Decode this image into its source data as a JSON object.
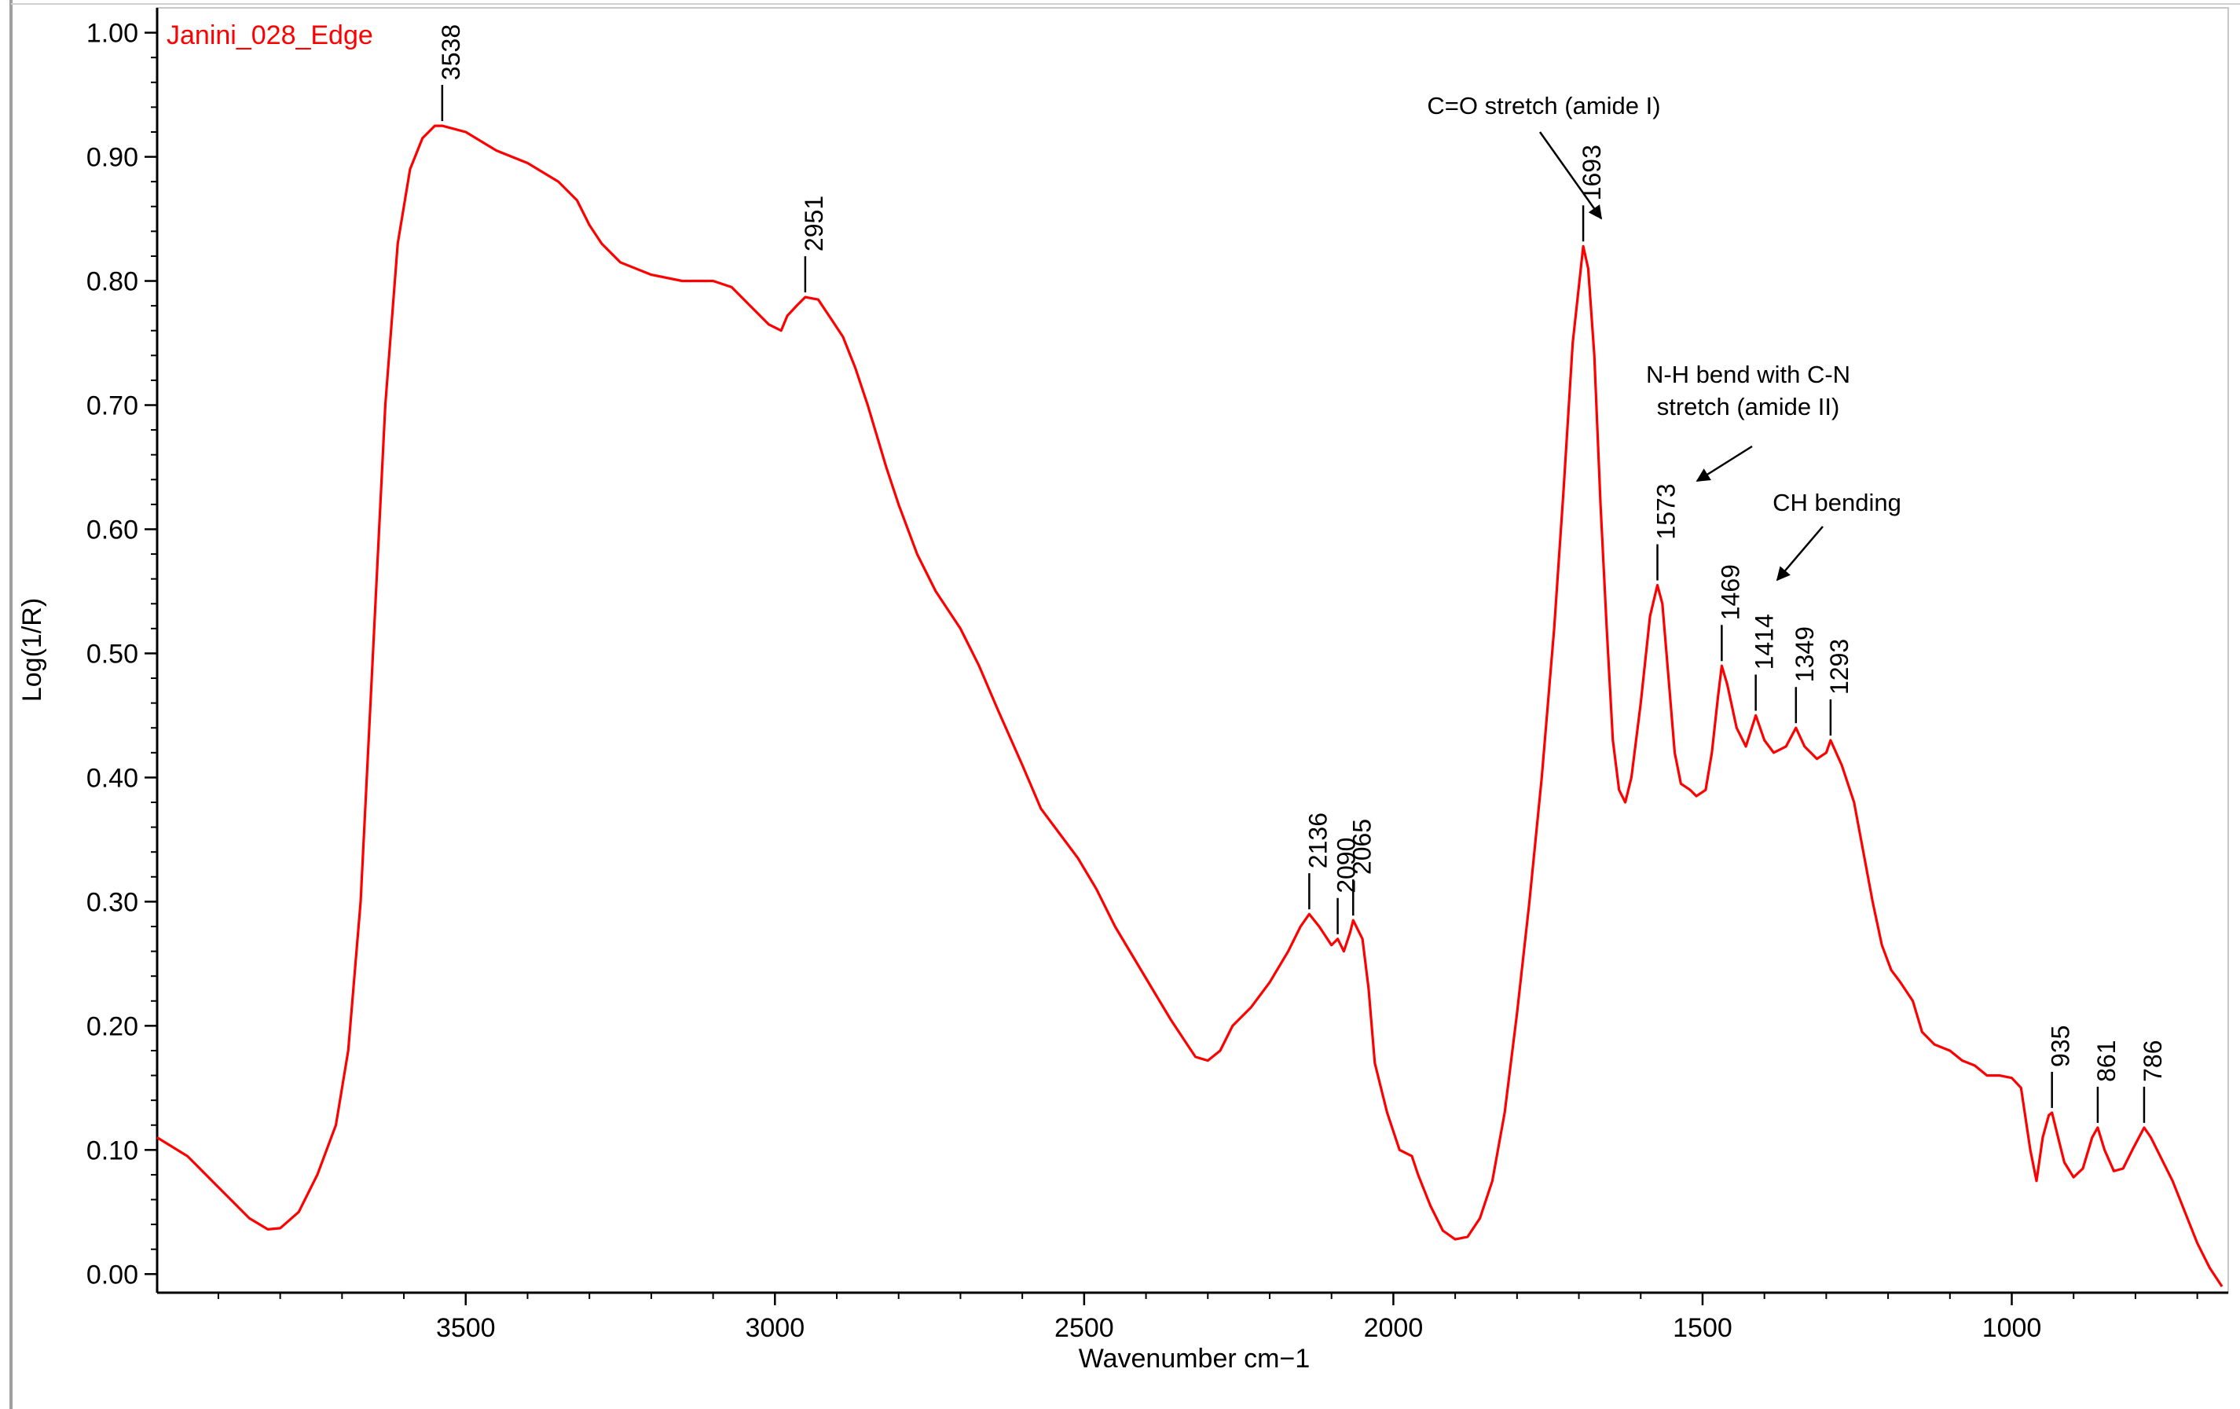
{
  "chart_data": {
    "type": "line",
    "title": "Janini_028_Edge",
    "xlabel": "Wavenumber cm−1",
    "ylabel": "Log(1/R)",
    "xlim": [
      3999,
      650
    ],
    "ylim": [
      -0.015,
      1.02
    ],
    "x_reversed": true,
    "x_ticks": [
      3500,
      3000,
      2500,
      2000,
      1500,
      1000
    ],
    "x_tick_labels": [
      "3500",
      "3000",
      "2500",
      "2000",
      "1500",
      "1000"
    ],
    "y_ticks": [
      0.0,
      0.1,
      0.2,
      0.3,
      0.4,
      0.5,
      0.6,
      0.7,
      0.8,
      0.9,
      1.0
    ],
    "y_tick_labels": [
      "0.00",
      "0.10",
      "0.20",
      "0.30",
      "0.40",
      "0.50",
      "0.60",
      "0.70",
      "0.80",
      "0.90",
      "1.00"
    ],
    "line_color": "#ff0000",
    "series": [
      {
        "name": "Janini_028_Edge",
        "points": [
          [
            3999,
            0.11
          ],
          [
            3950,
            0.095
          ],
          [
            3900,
            0.07
          ],
          [
            3850,
            0.045
          ],
          [
            3820,
            0.036
          ],
          [
            3800,
            0.037
          ],
          [
            3770,
            0.05
          ],
          [
            3740,
            0.08
          ],
          [
            3710,
            0.12
          ],
          [
            3690,
            0.18
          ],
          [
            3670,
            0.3
          ],
          [
            3650,
            0.5
          ],
          [
            3630,
            0.7
          ],
          [
            3610,
            0.83
          ],
          [
            3590,
            0.89
          ],
          [
            3570,
            0.915
          ],
          [
            3550,
            0.925
          ],
          [
            3538,
            0.925
          ],
          [
            3500,
            0.92
          ],
          [
            3450,
            0.905
          ],
          [
            3400,
            0.895
          ],
          [
            3350,
            0.88
          ],
          [
            3320,
            0.865
          ],
          [
            3300,
            0.845
          ],
          [
            3280,
            0.83
          ],
          [
            3250,
            0.815
          ],
          [
            3200,
            0.805
          ],
          [
            3150,
            0.8
          ],
          [
            3100,
            0.8
          ],
          [
            3070,
            0.795
          ],
          [
            3040,
            0.78
          ],
          [
            3010,
            0.765
          ],
          [
            2990,
            0.76
          ],
          [
            2980,
            0.772
          ],
          [
            2965,
            0.78
          ],
          [
            2951,
            0.787
          ],
          [
            2930,
            0.785
          ],
          [
            2910,
            0.77
          ],
          [
            2890,
            0.755
          ],
          [
            2870,
            0.73
          ],
          [
            2850,
            0.7
          ],
          [
            2820,
            0.65
          ],
          [
            2800,
            0.62
          ],
          [
            2770,
            0.58
          ],
          [
            2740,
            0.55
          ],
          [
            2700,
            0.52
          ],
          [
            2670,
            0.49
          ],
          [
            2640,
            0.455
          ],
          [
            2600,
            0.41
          ],
          [
            2570,
            0.375
          ],
          [
            2540,
            0.355
          ],
          [
            2510,
            0.335
          ],
          [
            2480,
            0.31
          ],
          [
            2450,
            0.28
          ],
          [
            2420,
            0.255
          ],
          [
            2390,
            0.23
          ],
          [
            2360,
            0.205
          ],
          [
            2340,
            0.19
          ],
          [
            2320,
            0.175
          ],
          [
            2300,
            0.172
          ],
          [
            2280,
            0.18
          ],
          [
            2260,
            0.2
          ],
          [
            2230,
            0.215
          ],
          [
            2200,
            0.235
          ],
          [
            2170,
            0.26
          ],
          [
            2150,
            0.28
          ],
          [
            2136,
            0.29
          ],
          [
            2120,
            0.28
          ],
          [
            2100,
            0.265
          ],
          [
            2090,
            0.27
          ],
          [
            2080,
            0.26
          ],
          [
            2070,
            0.275
          ],
          [
            2065,
            0.285
          ],
          [
            2050,
            0.27
          ],
          [
            2040,
            0.23
          ],
          [
            2030,
            0.17
          ],
          [
            2010,
            0.13
          ],
          [
            1990,
            0.1
          ],
          [
            1970,
            0.095
          ],
          [
            1960,
            0.08
          ],
          [
            1940,
            0.055
          ],
          [
            1920,
            0.035
          ],
          [
            1900,
            0.028
          ],
          [
            1880,
            0.03
          ],
          [
            1860,
            0.045
          ],
          [
            1840,
            0.075
          ],
          [
            1820,
            0.13
          ],
          [
            1800,
            0.21
          ],
          [
            1780,
            0.3
          ],
          [
            1760,
            0.4
          ],
          [
            1740,
            0.52
          ],
          [
            1725,
            0.63
          ],
          [
            1710,
            0.75
          ],
          [
            1693,
            0.828
          ],
          [
            1685,
            0.81
          ],
          [
            1675,
            0.74
          ],
          [
            1665,
            0.62
          ],
          [
            1655,
            0.52
          ],
          [
            1645,
            0.43
          ],
          [
            1635,
            0.39
          ],
          [
            1625,
            0.38
          ],
          [
            1615,
            0.4
          ],
          [
            1600,
            0.46
          ],
          [
            1585,
            0.53
          ],
          [
            1573,
            0.555
          ],
          [
            1565,
            0.54
          ],
          [
            1555,
            0.48
          ],
          [
            1545,
            0.42
          ],
          [
            1535,
            0.395
          ],
          [
            1520,
            0.39
          ],
          [
            1510,
            0.385
          ],
          [
            1495,
            0.39
          ],
          [
            1485,
            0.42
          ],
          [
            1475,
            0.465
          ],
          [
            1469,
            0.49
          ],
          [
            1460,
            0.475
          ],
          [
            1445,
            0.44
          ],
          [
            1430,
            0.425
          ],
          [
            1414,
            0.45
          ],
          [
            1400,
            0.43
          ],
          [
            1385,
            0.42
          ],
          [
            1365,
            0.425
          ],
          [
            1349,
            0.44
          ],
          [
            1335,
            0.425
          ],
          [
            1315,
            0.415
          ],
          [
            1300,
            0.42
          ],
          [
            1293,
            0.43
          ],
          [
            1275,
            0.41
          ],
          [
            1255,
            0.38
          ],
          [
            1240,
            0.34
          ],
          [
            1225,
            0.3
          ],
          [
            1210,
            0.265
          ],
          [
            1195,
            0.245
          ],
          [
            1180,
            0.235
          ],
          [
            1160,
            0.22
          ],
          [
            1145,
            0.195
          ],
          [
            1125,
            0.185
          ],
          [
            1100,
            0.18
          ],
          [
            1080,
            0.172
          ],
          [
            1060,
            0.168
          ],
          [
            1040,
            0.16
          ],
          [
            1020,
            0.16
          ],
          [
            1000,
            0.158
          ],
          [
            985,
            0.15
          ],
          [
            970,
            0.1
          ],
          [
            960,
            0.075
          ],
          [
            950,
            0.11
          ],
          [
            940,
            0.128
          ],
          [
            935,
            0.13
          ],
          [
            925,
            0.11
          ],
          [
            915,
            0.09
          ],
          [
            900,
            0.078
          ],
          [
            885,
            0.085
          ],
          [
            870,
            0.11
          ],
          [
            861,
            0.118
          ],
          [
            850,
            0.1
          ],
          [
            835,
            0.083
          ],
          [
            820,
            0.085
          ],
          [
            805,
            0.1
          ],
          [
            786,
            0.118
          ],
          [
            775,
            0.11
          ],
          [
            760,
            0.095
          ],
          [
            740,
            0.075
          ],
          [
            720,
            0.05
          ],
          [
            700,
            0.025
          ],
          [
            680,
            0.005
          ],
          [
            660,
            -0.01
          ]
        ]
      }
    ],
    "peak_labels": [
      {
        "x": 3538,
        "y": 0.925,
        "label": "3538"
      },
      {
        "x": 2951,
        "y": 0.787,
        "label": "2951"
      },
      {
        "x": 2136,
        "y": 0.29,
        "label": "2136"
      },
      {
        "x": 2090,
        "y": 0.27,
        "label": "2090"
      },
      {
        "x": 2065,
        "y": 0.285,
        "label": "2065"
      },
      {
        "x": 1693,
        "y": 0.828,
        "label": "1693"
      },
      {
        "x": 1573,
        "y": 0.555,
        "label": "1573"
      },
      {
        "x": 1469,
        "y": 0.49,
        "label": "1469"
      },
      {
        "x": 1414,
        "y": 0.45,
        "label": "1414"
      },
      {
        "x": 1349,
        "y": 0.44,
        "label": "1349"
      },
      {
        "x": 1293,
        "y": 0.43,
        "label": "1293"
      },
      {
        "x": 935,
        "y": 0.13,
        "label": "935"
      },
      {
        "x": 861,
        "y": 0.118,
        "label": "861"
      },
      {
        "x": 786,
        "y": 0.118,
        "label": "786"
      }
    ],
    "annotations": [
      {
        "lines": [
          "C=O stretch (amide I)"
        ],
        "points_to": 1693
      },
      {
        "lines": [
          "N-H bend with C-N",
          "stretch (amide II)"
        ],
        "points_to": 1573
      },
      {
        "lines": [
          "CH bending"
        ],
        "points_to": 1469
      }
    ]
  }
}
